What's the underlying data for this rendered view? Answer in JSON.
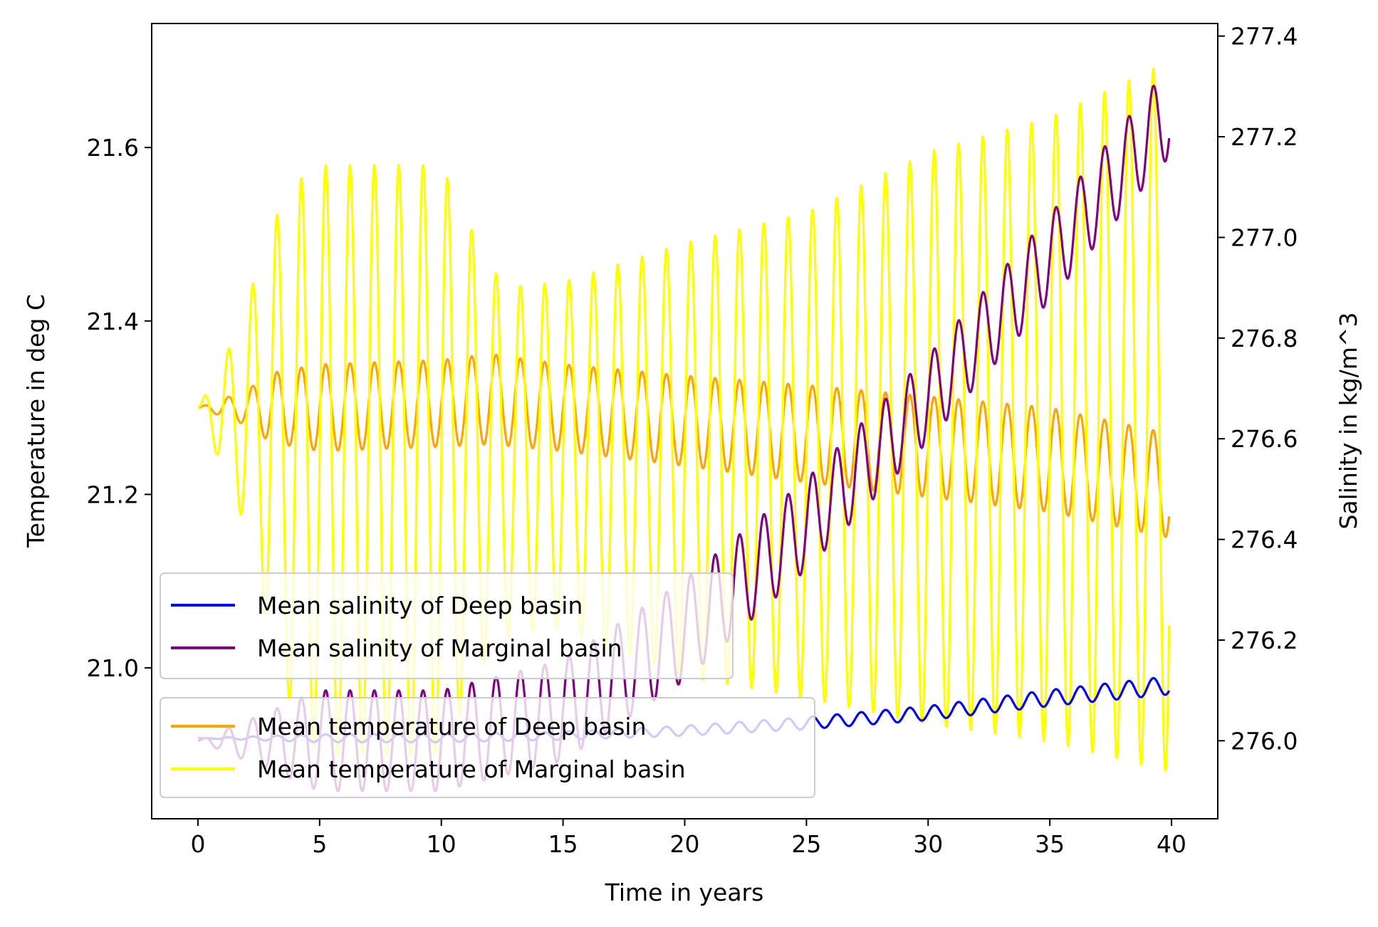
{
  "chart_data": {
    "type": "line",
    "xlabel": "Time in years",
    "ylabel_left": "Temperature in deg C",
    "ylabel_right": "Salinity in kg/m^3",
    "xlim": [
      -1.9,
      41.9
    ],
    "ylim_left": [
      20.826,
      21.743
    ],
    "ylim_right": [
      275.845,
      277.425
    ],
    "xticks": [
      "0",
      "5",
      "10",
      "15",
      "20",
      "25",
      "30",
      "35",
      "40"
    ],
    "yticks_left": [
      "21.0",
      "21.2",
      "21.4",
      "21.6"
    ],
    "yticks_right": [
      "276.0",
      "276.2",
      "276.4",
      "276.6",
      "276.8",
      "277.0",
      "277.2",
      "277.4"
    ],
    "grid": false,
    "colors": {
      "deep_temp": "#ffa500",
      "marg_temp": "#ffff00",
      "deep_sal": "#0000ff",
      "marg_sal": "#800080"
    },
    "legend_salinity": {
      "placement": "center-left",
      "entries": [
        {
          "label": "Mean salinity of Deep basin",
          "color": "#0000ff"
        },
        {
          "label": "Mean salinity of Marginal basin",
          "color": "#800080"
        }
      ]
    },
    "legend_temperature": {
      "placement": "lower-left",
      "entries": [
        {
          "label": "Mean temperature of Deep basin",
          "color": "#ffa500"
        },
        {
          "label": "Mean temperature of Marginal basin",
          "color": "#ffff00"
        }
      ]
    },
    "series": [
      {
        "name": "Mean temperature of Deep basin",
        "axis": "left",
        "x_range": [
          0,
          39.9
        ],
        "oscillation_period_years": 1.0,
        "envelope_x": [
          0,
          1,
          2,
          3,
          5,
          10,
          12,
          15,
          20,
          25,
          30,
          35,
          39.9
        ],
        "mean": [
          21.3,
          21.3,
          21.3,
          21.3,
          21.3,
          21.305,
          21.31,
          21.3,
          21.285,
          21.27,
          21.255,
          21.24,
          21.21
        ],
        "amplitude": [
          0.0,
          0.01,
          0.02,
          0.04,
          0.05,
          0.05,
          0.052,
          0.05,
          0.052,
          0.056,
          0.058,
          0.06,
          0.06
        ]
      },
      {
        "name": "Mean temperature of Marginal basin",
        "axis": "left",
        "x_range": [
          0,
          39.9
        ],
        "oscillation_period_years": 1.0,
        "envelope_x": [
          0,
          1,
          2,
          3,
          4,
          5,
          10,
          11,
          12,
          13,
          15,
          20,
          25,
          30,
          35,
          39.9
        ],
        "mean": [
          21.3,
          21.29,
          21.29,
          21.27,
          21.25,
          21.24,
          21.24,
          21.24,
          21.24,
          21.24,
          21.245,
          21.24,
          21.245,
          21.265,
          21.275,
          21.29
        ],
        "amplitude": [
          0.0,
          0.06,
          0.13,
          0.24,
          0.31,
          0.34,
          0.34,
          0.28,
          0.22,
          0.2,
          0.2,
          0.25,
          0.28,
          0.33,
          0.36,
          0.41
        ]
      },
      {
        "name": "Mean salinity of Deep basin",
        "axis": "right",
        "x_range": [
          0,
          39.9
        ],
        "oscillation_period_years": 1.0,
        "envelope_x": [
          0,
          5,
          10,
          15,
          20,
          25,
          30,
          35,
          39.9
        ],
        "mean": [
          276.005,
          276.005,
          276.005,
          276.01,
          276.02,
          276.035,
          276.055,
          276.085,
          276.11
        ],
        "amplitude": [
          0.0,
          0.008,
          0.008,
          0.008,
          0.01,
          0.012,
          0.014,
          0.016,
          0.018
        ]
      },
      {
        "name": "Mean salinity of Marginal basin",
        "axis": "right",
        "x_range": [
          0,
          39.9
        ],
        "oscillation_period_years": 1.0,
        "envelope_x": [
          0,
          5,
          10,
          15,
          20,
          25,
          30,
          35,
          39.9
        ],
        "mean": [
          276.0,
          276.0,
          276.0,
          276.06,
          276.22,
          276.43,
          276.68,
          276.96,
          277.25
        ],
        "amplitude": [
          0.0,
          0.1,
          0.1,
          0.1,
          0.1,
          0.09,
          0.085,
          0.085,
          0.09
        ]
      }
    ]
  }
}
